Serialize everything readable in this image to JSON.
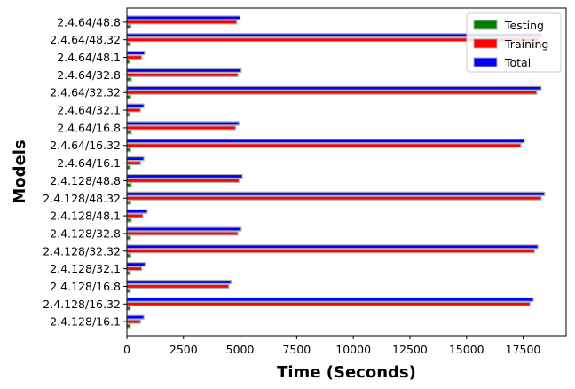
{
  "chart_data": {
    "type": "bar",
    "orientation": "horizontal",
    "title": "",
    "xlabel": "Time (Seconds)",
    "ylabel": "Models",
    "xlim": [
      0,
      19400
    ],
    "xticks": [
      0,
      2500,
      5000,
      7500,
      10000,
      12500,
      15000,
      17500
    ],
    "xtick_labels": [
      "0",
      "2500",
      "5000",
      "7500",
      "10000",
      "12500",
      "15000",
      "17500"
    ],
    "grid": false,
    "legend_position": "top-right",
    "categories": [
      "2.4.64/48.8",
      "2.4.64/48.32",
      "2.4.64/48.1",
      "2.4.64/32.8",
      "2.4.64/32.32",
      "2.4.64/32.1",
      "2.4.64/16.8",
      "2.4.64/16.32",
      "2.4.64/16.1",
      "2.4.128/48.8",
      "2.4.128/48.32",
      "2.4.128/48.1",
      "2.4.128/32.8",
      "2.4.128/32.32",
      "2.4.128/32.1",
      "2.4.128/16.8",
      "2.4.128/16.32",
      "2.4.128/16.1"
    ],
    "series": [
      {
        "name": "Testing",
        "color": "#008000",
        "values": [
          180,
          150,
          120,
          200,
          180,
          130,
          200,
          170,
          150,
          200,
          170,
          200,
          170,
          170,
          150,
          150,
          150,
          150
        ]
      },
      {
        "name": "Training",
        "color": "#ff0000",
        "values": [
          4850,
          18200,
          650,
          4900,
          18100,
          600,
          4800,
          17400,
          600,
          4950,
          18300,
          700,
          4900,
          18000,
          650,
          4500,
          17800,
          600
        ]
      },
      {
        "name": "Total",
        "color": "#0000ff",
        "values": [
          5000,
          18350,
          780,
          5050,
          18300,
          750,
          4950,
          17550,
          750,
          5100,
          18450,
          900,
          5050,
          18150,
          800,
          4600,
          17950,
          750
        ]
      }
    ]
  }
}
